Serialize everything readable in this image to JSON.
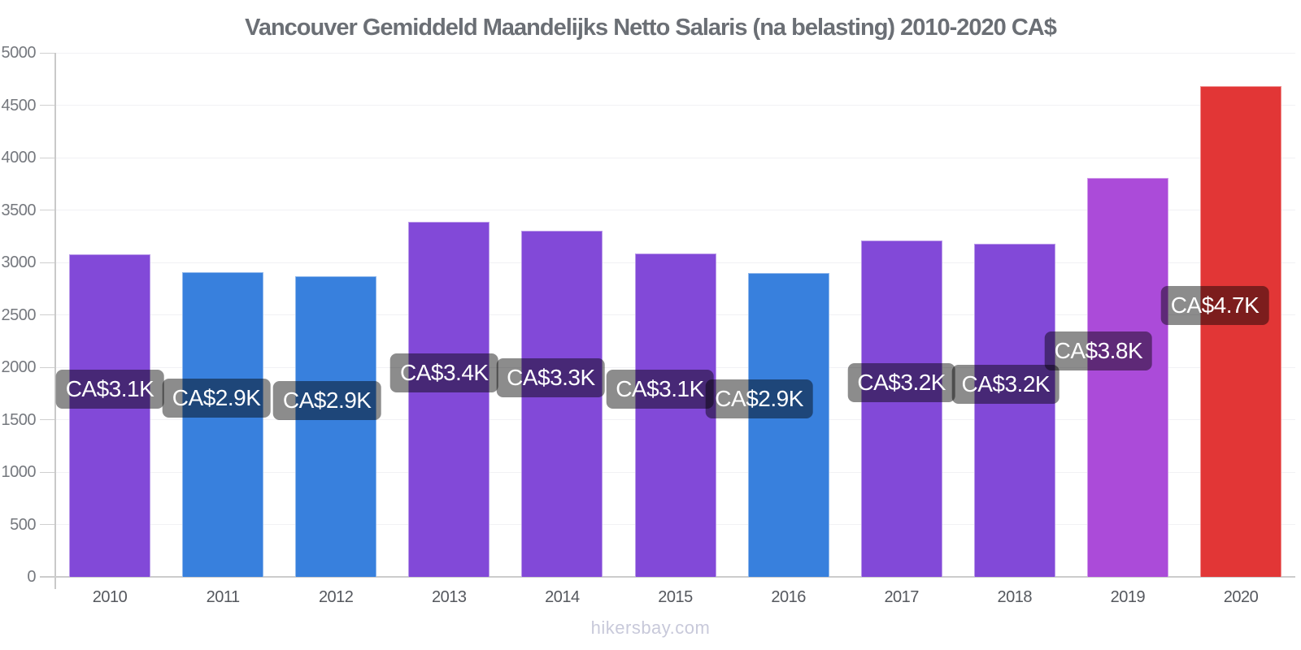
{
  "chart_data": {
    "type": "bar",
    "title": "Vancouver Gemiddeld Maandelijks Netto Salaris (na belasting) 2010-2020 CA$",
    "categories": [
      "2010",
      "2011",
      "2012",
      "2013",
      "2014",
      "2015",
      "2016",
      "2017",
      "2018",
      "2019",
      "2020"
    ],
    "values": [
      3080,
      2910,
      2865,
      3390,
      3305,
      3085,
      2900,
      3210,
      3175,
      3810,
      4685
    ],
    "bar_labels": [
      "CA$3.1K",
      "CA$2.9K",
      "CA$2.9K",
      "CA$3.4K",
      "CA$3.3K",
      "CA$3.1K",
      "CA$2.9K",
      "CA$3.2K",
      "CA$3.2K",
      "CA$3.8K",
      "CA$4.7K"
    ],
    "bar_colors": [
      "#8249d8",
      "#3880dd",
      "#3880dd",
      "#8249d8",
      "#8249d8",
      "#8249d8",
      "#3880dd",
      "#8249d8",
      "#8249d8",
      "#ab4bd9",
      "#e23636"
    ],
    "xlabel": "",
    "ylabel": "",
    "ylim": [
      0,
      5000
    ],
    "yticks": [
      0,
      500,
      1000,
      1500,
      2000,
      2500,
      3000,
      3500,
      4000,
      4500,
      5000
    ],
    "grid": true,
    "legend": false,
    "currency": "CA$",
    "label_style": "dark-rounded-badge",
    "layout": {
      "label_dx": [
        0,
        -8,
        -11,
        -6,
        -14,
        -19,
        -36,
        0,
        -11,
        -36,
        -32
      ],
      "label_dy_from_bar_middle": -32
    }
  },
  "footer": {
    "text": "hikersbay.com"
  },
  "colors": {
    "background": "#ffffff",
    "title_text": "#6b6f75",
    "axis_line": "#c9c9c9",
    "gridline": "#f1f1f4",
    "y_tick_text": "#75787e",
    "x_tick_text": "#55585e",
    "badge_background": "rgba(0,0,0,0.45)",
    "badge_text": "#ffffff",
    "watermark_text": "#c8c9da",
    "purple_bar": "#8249d8",
    "blue_bar": "#3880dd",
    "magenta_bar": "#ab4bd9",
    "red_bar": "#e23636"
  }
}
